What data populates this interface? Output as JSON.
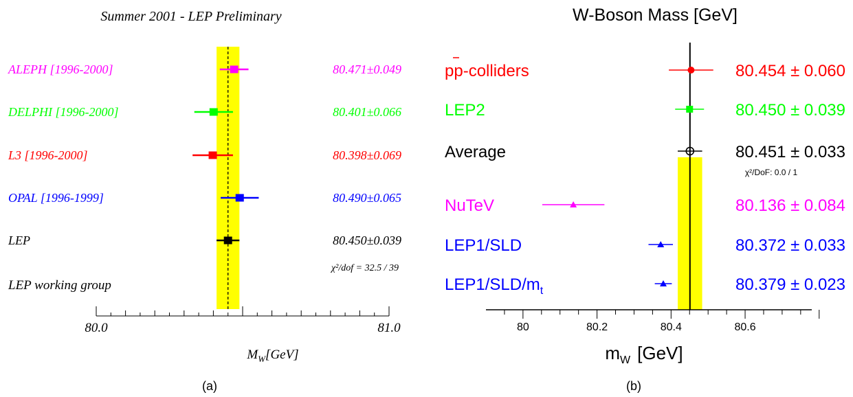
{
  "chart_data": [
    {
      "type": "scatter",
      "panel_label": "(a)",
      "title": "Summer 2001 - LEP Preliminary",
      "xlabel_main": "M",
      "xlabel_sub": "W",
      "xlabel_unit": "[GeV]",
      "xlim": [
        80.0,
        81.0
      ],
      "x_tick_labels": [
        {
          "value": 80.0,
          "label": "80.0"
        },
        {
          "value": 81.0,
          "label": "81.0"
        }
      ],
      "band": {
        "center": 80.45,
        "halfwidth": 0.039,
        "color": "#ffff00"
      },
      "average_line": 80.45,
      "series": [
        {
          "name": "ALEPH",
          "period": "[1996-2000]",
          "value": 80.471,
          "error": 0.049,
          "value_text": "80.471±0.049",
          "color": "#ff00ff"
        },
        {
          "name": "DELPHI",
          "period": "[1996-2000]",
          "value": 80.401,
          "error": 0.066,
          "value_text": "80.401±0.066",
          "color": "#00ff00"
        },
        {
          "name": "L3",
          "period": "[1996-2000]",
          "value": 80.398,
          "error": 0.069,
          "value_text": "80.398±0.069",
          "color": "#ff0000"
        },
        {
          "name": "OPAL",
          "period": "[1996-1999]",
          "value": 80.49,
          "error": 0.065,
          "value_text": "80.490±0.065",
          "color": "#0000ff"
        },
        {
          "name": "LEP",
          "period": "",
          "value": 80.45,
          "error": 0.039,
          "value_text": "80.450±0.039",
          "color": "#000000"
        }
      ],
      "chi2_text": "χ²/dof = 32.5 / 39",
      "footer_note": "LEP working group"
    },
    {
      "type": "scatter",
      "panel_label": "(b)",
      "title": "W-Boson Mass  [GeV]",
      "xlabel_main": "m",
      "xlabel_sub": "W",
      "xlabel_unit": "[GeV]",
      "xlim": [
        79.9,
        80.78
      ],
      "x_tick_labels": [
        {
          "value": 80.0,
          "label": "80"
        },
        {
          "value": 80.2,
          "label": "80.2"
        },
        {
          "value": 80.4,
          "label": "80.4"
        },
        {
          "value": 80.6,
          "label": "80.6"
        }
      ],
      "band": {
        "center": 80.451,
        "halfwidth": 0.033,
        "color": "#ffff00"
      },
      "average_line": 80.451,
      "series": [
        {
          "name": "pp-colliders",
          "value": 80.454,
          "error": 0.06,
          "value_text": "80.454 ± 0.060",
          "color": "#ff0000",
          "marker": "circle"
        },
        {
          "name": "LEP2",
          "value": 80.45,
          "error": 0.039,
          "value_text": "80.450 ± 0.039",
          "color": "#00ff00",
          "marker": "square"
        },
        {
          "name": "Average",
          "value": 80.451,
          "error": 0.033,
          "value_text": "80.451 ± 0.033",
          "color": "#000000",
          "marker": "open-circle"
        },
        {
          "name": "NuTeV",
          "value": 80.136,
          "error": 0.084,
          "value_text": "80.136 ± 0.084",
          "color": "#ff00ff",
          "marker": "triangle"
        },
        {
          "name": "LEP1/SLD",
          "value": 80.372,
          "error": 0.033,
          "value_text": "80.372 ± 0.033",
          "color": "#0000ff",
          "marker": "triangle"
        },
        {
          "name": "LEP1/SLD/m",
          "name_sub": "t",
          "value": 80.379,
          "error": 0.023,
          "value_text": "80.379 ± 0.023",
          "color": "#0000ff",
          "marker": "triangle"
        }
      ],
      "chi2_text": "χ²/DoF: 0.0 / 1"
    }
  ]
}
